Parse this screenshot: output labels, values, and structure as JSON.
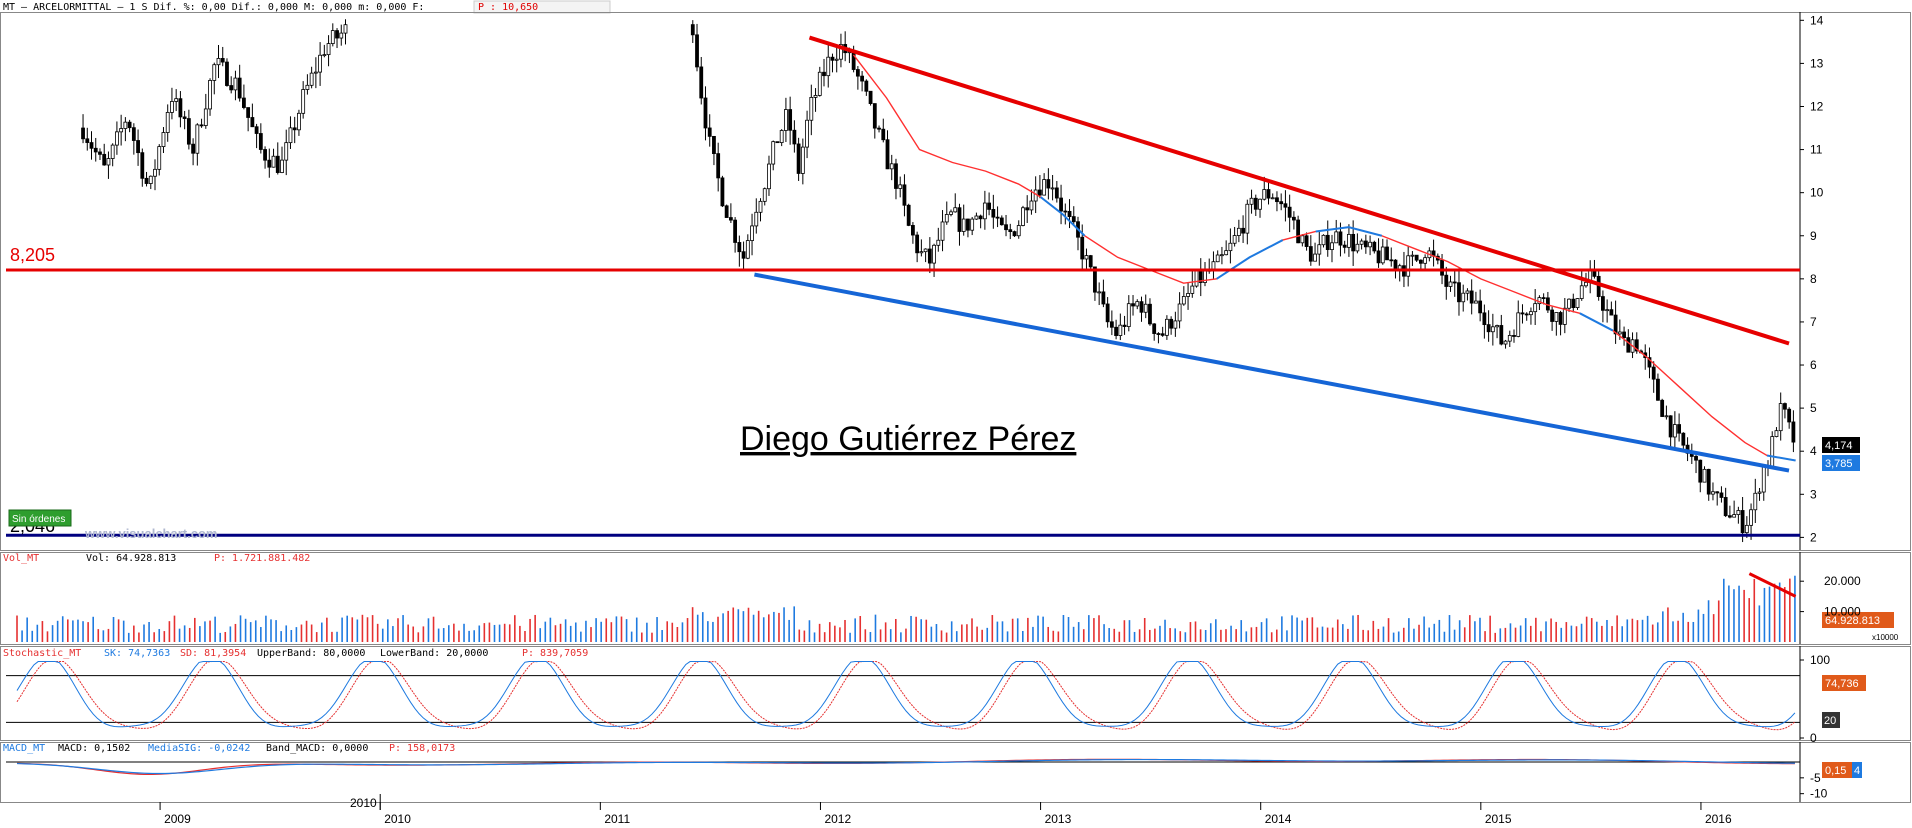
{
  "colors": {
    "up": "#1e7ae0",
    "down": "#e53030",
    "black": "#000000",
    "red": "#e60000",
    "blue": "#1565d6",
    "navy": "#000080",
    "ma": "#ff3030",
    "grid": "#000000",
    "orange": "#e05a1a",
    "green": "#2e9e2e"
  },
  "header": {
    "ticker_line": "MT – ARCELORMITTAL –  1 S Dif. %: 0,00 Dif.: 0,000 M: 0,000 m: 0,000 F:",
    "price_box": "P : 10,650"
  },
  "watermark": {
    "author": "Diego Gutiérrez Pérez",
    "site": "www.visualchart.com"
  },
  "badge_sin_ordenes": "Sin órdenes",
  "price_panel": {
    "y_ticks": [
      "2",
      "3",
      "4",
      "5",
      "6",
      "7",
      "8",
      "9",
      "10",
      "11",
      "12",
      "13",
      "14"
    ],
    "level_8205": "8,205",
    "level_low": "2,046",
    "last_price_label": "4,174",
    "ma_label": "3,785"
  },
  "volume_panel": {
    "header_name": "Vol_MT",
    "header_vol": "Vol: 64.928.813",
    "header_p": "P: 1.721.881.482",
    "y_ticks": [
      "20.000",
      "10.000"
    ],
    "last_label": "64.928.813",
    "multiplier": "x10000"
  },
  "stoch_panel": {
    "header_name": "Stochastic_MT",
    "sk": "SK: 74,7363",
    "sd": "SD: 81,3954",
    "upper": "UpperBand: 80,0000",
    "lower": "LowerBand: 20,0000",
    "p": "P: 839,7059",
    "y_ticks": [
      "100",
      "0"
    ],
    "sk_label": "74,736",
    "band_label": "20"
  },
  "macd_panel": {
    "header_name": "MACD_MT",
    "macd": "MACD: 0,1502",
    "sig": "MediaSIG: -0,0242",
    "band": "Band_MACD: 0,0000",
    "p": "P: 158,0173",
    "y_ticks": [
      "-5",
      "-10"
    ],
    "macd_label": "0,15",
    "sig_label": "4"
  },
  "x_axis": {
    "years": [
      "2009",
      "2010",
      "2011",
      "2012",
      "2013",
      "2014",
      "2015",
      "2016"
    ],
    "extra_label": "2010"
  },
  "chart_data": {
    "type": "candlestick",
    "title": "MT – ARCELORMITTAL – 1 S",
    "y_range": [
      1.8,
      14.1
    ],
    "x_range": [
      2008.3,
      2016.45
    ],
    "horizontal_lines": [
      {
        "label": "8,205",
        "value": 8.205
      },
      {
        "label": "2,046",
        "value": 2.05
      }
    ],
    "trendlines": [
      {
        "color": "red",
        "from": {
          "x": 2011.95,
          "y": 13.6
        },
        "to": {
          "x": 2016.4,
          "y": 6.5
        }
      },
      {
        "color": "blue",
        "from": {
          "x": 2011.7,
          "y": 8.1
        },
        "to": {
          "x": 2016.4,
          "y": 3.55
        }
      }
    ],
    "price_path": [
      [
        2008.65,
        11.5
      ],
      [
        2008.75,
        10.5
      ],
      [
        2008.85,
        11.8
      ],
      [
        2008.95,
        10.0
      ],
      [
        2009.05,
        12.3
      ],
      [
        2009.15,
        11.0
      ],
      [
        2009.25,
        13.0
      ],
      [
        2009.35,
        12.5
      ],
      [
        2009.45,
        11.0
      ],
      [
        2009.55,
        10.6
      ],
      [
        2009.65,
        12.2
      ],
      [
        2009.75,
        13.4
      ],
      [
        2009.85,
        13.8
      ],
      [
        2011.42,
        13.9
      ],
      [
        2011.45,
        12.6
      ],
      [
        2011.5,
        11.0
      ],
      [
        2011.55,
        10.0
      ],
      [
        2011.6,
        9.2
      ],
      [
        2011.65,
        8.5
      ],
      [
        2011.7,
        9.6
      ],
      [
        2011.75,
        10.3
      ],
      [
        2011.8,
        11.2
      ],
      [
        2011.85,
        11.8
      ],
      [
        2011.9,
        10.5
      ],
      [
        2011.95,
        11.9
      ],
      [
        2012.0,
        12.6
      ],
      [
        2012.05,
        13.2
      ],
      [
        2012.1,
        13.4
      ],
      [
        2012.15,
        12.9
      ],
      [
        2012.2,
        12.3
      ],
      [
        2012.25,
        11.5
      ],
      [
        2012.3,
        10.8
      ],
      [
        2012.35,
        10.2
      ],
      [
        2012.4,
        9.2
      ],
      [
        2012.45,
        8.6
      ],
      [
        2012.5,
        8.4
      ],
      [
        2012.55,
        9.1
      ],
      [
        2012.6,
        9.5
      ],
      [
        2012.65,
        9.2
      ],
      [
        2012.7,
        9.4
      ],
      [
        2012.75,
        9.8
      ],
      [
        2012.8,
        9.2
      ],
      [
        2012.85,
        9.0
      ],
      [
        2012.9,
        9.3
      ],
      [
        2012.95,
        10.0
      ],
      [
        2013.0,
        10.2
      ],
      [
        2013.05,
        10.3
      ],
      [
        2013.1,
        9.6
      ],
      [
        2013.15,
        9.1
      ],
      [
        2013.2,
        8.5
      ],
      [
        2013.25,
        7.8
      ],
      [
        2013.3,
        7.0
      ],
      [
        2013.35,
        6.7
      ],
      [
        2013.4,
        7.2
      ],
      [
        2013.45,
        7.5
      ],
      [
        2013.5,
        7.0
      ],
      [
        2013.55,
        6.7
      ],
      [
        2013.6,
        7.1
      ],
      [
        2013.65,
        7.4
      ],
      [
        2013.7,
        7.9
      ],
      [
        2013.75,
        8.1
      ],
      [
        2013.8,
        8.3
      ],
      [
        2013.85,
        8.6
      ],
      [
        2013.9,
        9.1
      ],
      [
        2013.95,
        9.6
      ],
      [
        2014.0,
        9.9
      ],
      [
        2014.05,
        10.0
      ],
      [
        2014.1,
        9.7
      ],
      [
        2014.15,
        9.3
      ],
      [
        2014.2,
        8.7
      ],
      [
        2014.25,
        8.5
      ],
      [
        2014.3,
        8.9
      ],
      [
        2014.35,
        9.0
      ],
      [
        2014.4,
        8.9
      ],
      [
        2014.45,
        8.7
      ],
      [
        2014.5,
        8.6
      ],
      [
        2014.55,
        8.5
      ],
      [
        2014.6,
        8.4
      ],
      [
        2014.65,
        8.3
      ],
      [
        2014.7,
        8.4
      ],
      [
        2014.75,
        8.7
      ],
      [
        2014.8,
        8.3
      ],
      [
        2014.85,
        7.8
      ],
      [
        2014.9,
        7.6
      ],
      [
        2014.95,
        7.5
      ],
      [
        2015.0,
        7.3
      ],
      [
        2015.05,
        6.9
      ],
      [
        2015.1,
        6.5
      ],
      [
        2015.15,
        6.9
      ],
      [
        2015.2,
        7.3
      ],
      [
        2015.25,
        7.6
      ],
      [
        2015.3,
        7.4
      ],
      [
        2015.35,
        7.1
      ],
      [
        2015.4,
        7.3
      ],
      [
        2015.45,
        7.8
      ],
      [
        2015.5,
        8.0
      ],
      [
        2015.55,
        7.5
      ],
      [
        2015.6,
        6.9
      ],
      [
        2015.65,
        6.5
      ],
      [
        2015.7,
        6.6
      ],
      [
        2015.75,
        6.0
      ],
      [
        2015.8,
        5.3
      ],
      [
        2015.85,
        4.7
      ],
      [
        2015.9,
        4.2
      ],
      [
        2015.95,
        3.9
      ],
      [
        2016.0,
        3.5
      ],
      [
        2016.05,
        3.0
      ],
      [
        2016.1,
        2.7
      ],
      [
        2016.15,
        2.5
      ],
      [
        2016.2,
        2.3
      ],
      [
        2016.25,
        2.9
      ],
      [
        2016.28,
        3.6
      ],
      [
        2016.31,
        3.8
      ],
      [
        2016.34,
        4.6
      ],
      [
        2016.37,
        5.0
      ],
      [
        2016.4,
        4.5
      ],
      [
        2016.43,
        4.17
      ]
    ],
    "moving_average": [
      [
        2012.15,
        13.2
      ],
      [
        2012.3,
        12.2
      ],
      [
        2012.45,
        11.0
      ],
      [
        2012.6,
        10.7
      ],
      [
        2012.75,
        10.5
      ],
      [
        2012.9,
        10.2
      ],
      [
        2013.0,
        9.9
      ],
      [
        2013.1,
        9.5
      ],
      [
        2013.2,
        9.0
      ],
      [
        2013.35,
        8.5
      ],
      [
        2013.5,
        8.2
      ],
      [
        2013.65,
        7.9
      ],
      [
        2013.8,
        8.0
      ],
      [
        2013.95,
        8.5
      ],
      [
        2014.1,
        8.9
      ],
      [
        2014.25,
        9.1
      ],
      [
        2014.4,
        9.2
      ],
      [
        2014.55,
        9.0
      ],
      [
        2014.7,
        8.7
      ],
      [
        2014.85,
        8.4
      ],
      [
        2015.0,
        8.0
      ],
      [
        2015.15,
        7.7
      ],
      [
        2015.3,
        7.4
      ],
      [
        2015.45,
        7.2
      ],
      [
        2015.6,
        6.8
      ],
      [
        2015.75,
        6.2
      ],
      [
        2015.9,
        5.5
      ],
      [
        2016.05,
        4.8
      ],
      [
        2016.2,
        4.2
      ],
      [
        2016.3,
        3.9
      ],
      [
        2016.43,
        3.785
      ]
    ],
    "volume": {
      "max": 25000,
      "unit": "x10000",
      "last": 64928813
    },
    "stochastic": {
      "sk_last": 74.7363,
      "sd_last": 81.3954,
      "upper": 80,
      "lower": 20
    },
    "macd": {
      "macd_last": 0.1502,
      "signal_last": -0.0242,
      "band": 0
    }
  }
}
